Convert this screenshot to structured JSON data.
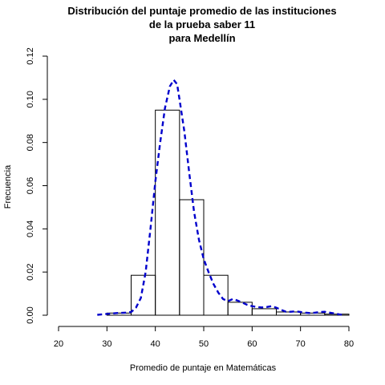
{
  "chart_data": {
    "type": "bar",
    "title_lines": [
      "Distribución del puntaje promedio de las instituciones",
      "de la prueba saber 11",
      "para Medellín"
    ],
    "xlabel": "Promedio de puntaje en Matemáticas",
    "ylabel": "Frecuencia",
    "xlim": [
      20,
      80
    ],
    "ylim": [
      0,
      0.12
    ],
    "x_ticks": [
      "20",
      "30",
      "40",
      "50",
      "60",
      "70",
      "80"
    ],
    "y_ticks": [
      "0.00",
      "0.02",
      "0.04",
      "0.06",
      "0.08",
      "0.10",
      "0.12"
    ],
    "histogram": {
      "bin_edges": [
        30,
        35,
        40,
        45,
        50,
        55,
        60,
        65,
        70,
        75,
        80
      ],
      "density": [
        0.001,
        0.0185,
        0.095,
        0.0535,
        0.0185,
        0.006,
        0.003,
        0.0015,
        0.001,
        0.0005
      ]
    },
    "density_curve": {
      "x": [
        28,
        30,
        32,
        34,
        35,
        36,
        37,
        38,
        39,
        40,
        41,
        42,
        43,
        43.8,
        44.5,
        45,
        46,
        47,
        48,
        49,
        50,
        51,
        52,
        53,
        54,
        55,
        56,
        57,
        58,
        59,
        60,
        61,
        62,
        63,
        64,
        65,
        66,
        67,
        68,
        69,
        70,
        71,
        72,
        73,
        74,
        75,
        76,
        77,
        78,
        79
      ],
      "y": [
        0.0002,
        0.0006,
        0.001,
        0.0012,
        0.0015,
        0.0035,
        0.008,
        0.02,
        0.04,
        0.062,
        0.08,
        0.096,
        0.106,
        0.109,
        0.107,
        0.1,
        0.085,
        0.066,
        0.048,
        0.035,
        0.026,
        0.02,
        0.0145,
        0.0105,
        0.0075,
        0.0065,
        0.0075,
        0.0068,
        0.0058,
        0.0048,
        0.0042,
        0.0038,
        0.0036,
        0.0038,
        0.0042,
        0.0035,
        0.0025,
        0.0016,
        0.0016,
        0.0018,
        0.0015,
        0.0012,
        0.001,
        0.0012,
        0.0015,
        0.0016,
        0.0012,
        0.0008,
        0.0004,
        0.0001
      ],
      "color": "#0000cc",
      "style": "dashed"
    },
    "grid": false,
    "legend": "none"
  }
}
